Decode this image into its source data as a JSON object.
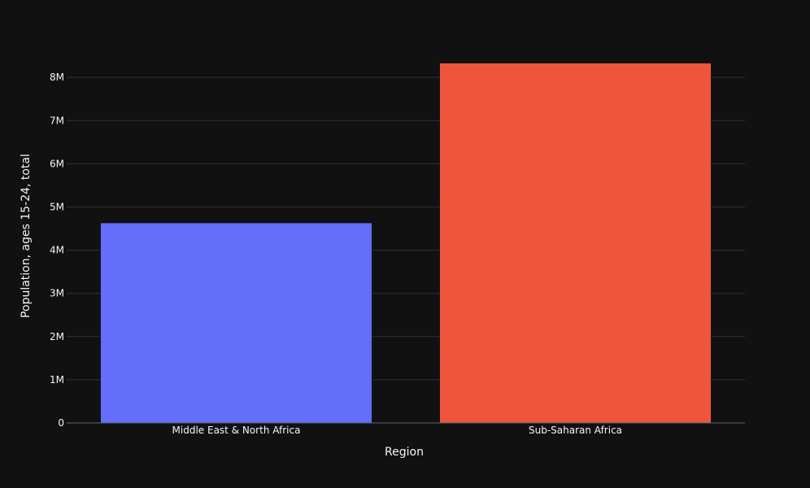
{
  "chart_data": {
    "type": "bar",
    "title": "",
    "xlabel": "Region",
    "ylabel": "Population, ages 15-24, total",
    "categories": [
      "Middle East & North Africa",
      "Sub-Saharan Africa"
    ],
    "values": [
      4630000,
      8330000
    ],
    "colors": [
      "#636efa",
      "#ef553b"
    ],
    "ylim": [
      0,
      8700000
    ],
    "yticks": [
      0,
      1000000,
      2000000,
      3000000,
      4000000,
      5000000,
      6000000,
      7000000,
      8000000
    ],
    "ytick_labels": [
      "0",
      "1M",
      "2M",
      "3M",
      "4M",
      "5M",
      "6M",
      "7M",
      "8M"
    ],
    "grid": true,
    "legend": "none"
  },
  "theme": {
    "background": "#111111",
    "grid_color": "#283442",
    "text_color": "#f2f5fa",
    "axis_line_color": "#506784"
  }
}
